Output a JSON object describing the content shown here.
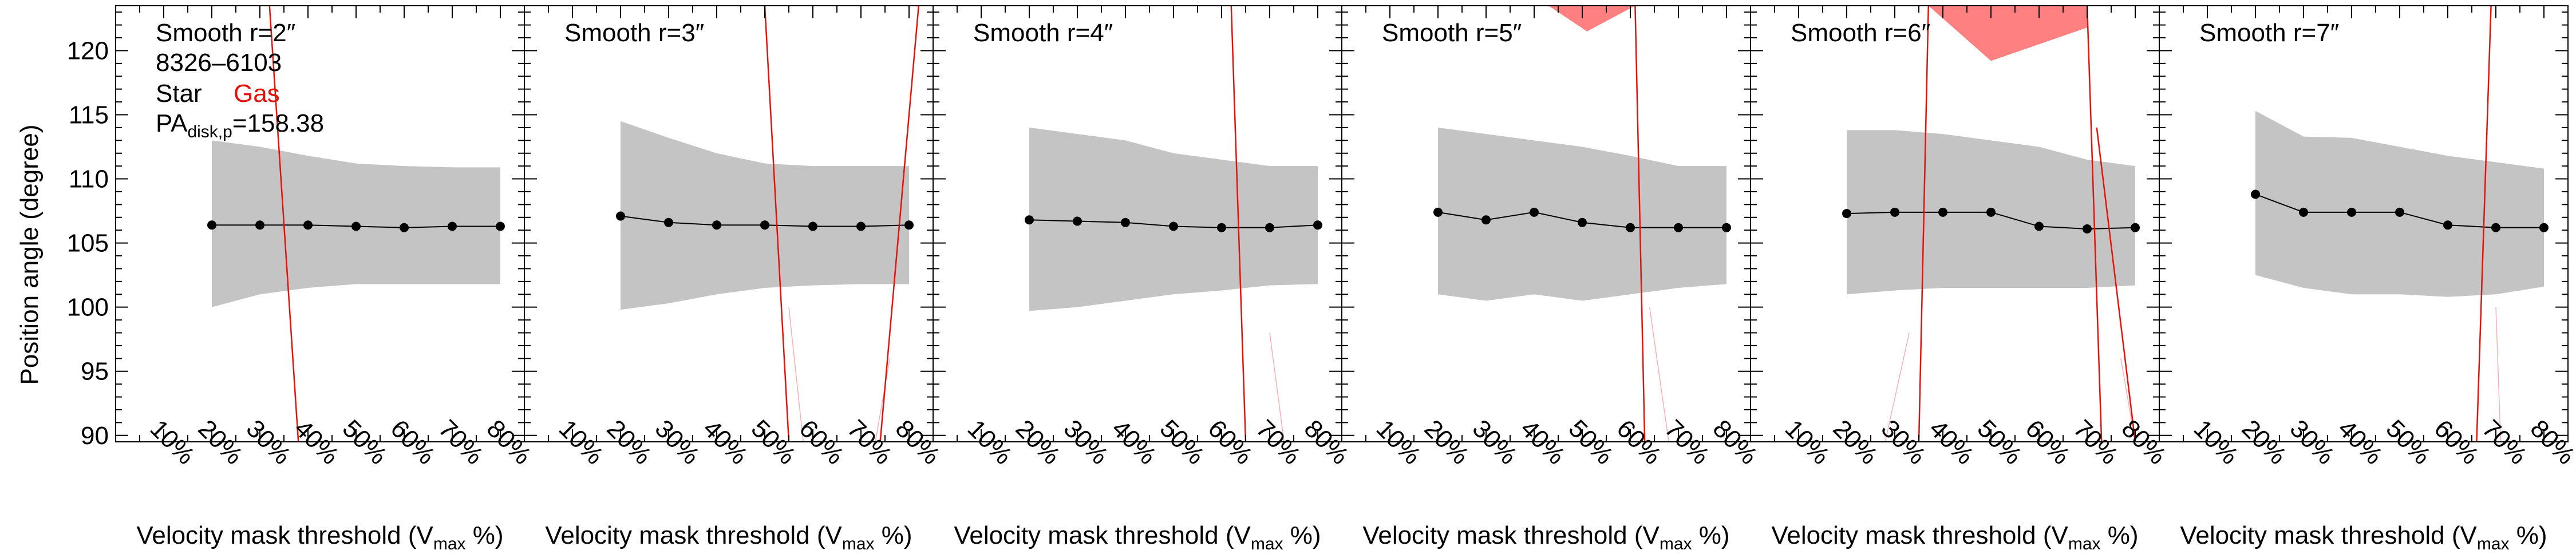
{
  "figure": {
    "ylabel": "Position angle (degree)",
    "xlabel_main": "Velocity mask threshold (V",
    "xlabel_sub": "max",
    "xlabel_tail": " %)",
    "ytick_labels": [
      "90",
      "95",
      "100",
      "105",
      "110",
      "115",
      "120"
    ],
    "xtick_labels": [
      "10%",
      "20%",
      "30%",
      "40%",
      "50%",
      "60%",
      "70%",
      "80%"
    ],
    "legend": {
      "plateifu": "8326–6103",
      "star": "Star",
      "gas": "Gas",
      "pa_main": "PA",
      "pa_sub": "disk,p",
      "pa_value": "=158.38"
    }
  },
  "chart_data": [
    {
      "type": "line",
      "title": "Smooth r=2″",
      "x": [
        20,
        30,
        40,
        50,
        60,
        70,
        80
      ],
      "y": [
        106.4,
        106.4,
        106.4,
        106.3,
        106.2,
        106.3,
        106.3
      ],
      "band_upper": [
        113.0,
        112.5,
        111.8,
        111.2,
        111.0,
        110.9,
        110.9
      ],
      "band_lower": [
        100.0,
        101.0,
        101.5,
        101.8,
        101.8,
        101.8,
        101.8
      ],
      "gas_lines": [
        [
          [
            32,
            123.5
          ],
          [
            38,
            89.5
          ]
        ]
      ],
      "gas_faint_lines": [],
      "gas_patches": [],
      "xlim": [
        0,
        85
      ],
      "ylim": [
        89.5,
        123.5
      ]
    },
    {
      "type": "line",
      "title": "Smooth r=3″",
      "x": [
        20,
        30,
        40,
        50,
        60,
        70,
        80
      ],
      "y": [
        107.1,
        106.6,
        106.4,
        106.4,
        106.3,
        106.3,
        106.4
      ],
      "band_upper": [
        114.5,
        113.2,
        112.0,
        111.2,
        111.0,
        111.0,
        111.0
      ],
      "band_lower": [
        99.8,
        100.3,
        101.0,
        101.5,
        101.7,
        101.8,
        101.8
      ],
      "gas_lines": [
        [
          [
            50,
            123.5
          ],
          [
            55,
            89.5
          ]
        ],
        [
          [
            82,
            123.5
          ],
          [
            74,
            89.5
          ]
        ]
      ],
      "gas_faint_lines": [
        [
          [
            55,
            100
          ],
          [
            58,
            89.5
          ]
        ],
        [
          [
            76,
            96
          ],
          [
            73,
            89.5
          ]
        ]
      ],
      "gas_patches": [],
      "xlim": [
        0,
        85
      ],
      "ylim": [
        89.5,
        123.5
      ]
    },
    {
      "type": "line",
      "title": "Smooth r=4″",
      "x": [
        20,
        30,
        40,
        50,
        60,
        70,
        80
      ],
      "y": [
        106.8,
        106.7,
        106.6,
        106.3,
        106.2,
        106.2,
        106.4
      ],
      "band_upper": [
        114.0,
        113.5,
        113.0,
        112.0,
        111.5,
        111.0,
        111.0
      ],
      "band_lower": [
        99.7,
        100.0,
        100.5,
        101.0,
        101.3,
        101.7,
        101.8
      ],
      "gas_lines": [
        [
          [
            62,
            123.5
          ],
          [
            65,
            89.5
          ]
        ]
      ],
      "gas_faint_lines": [
        [
          [
            70,
            98
          ],
          [
            73,
            89.5
          ]
        ]
      ],
      "gas_patches": [],
      "xlim": [
        0,
        85
      ],
      "ylim": [
        89.5,
        123.5
      ]
    },
    {
      "type": "line",
      "title": "Smooth r=5″",
      "x": [
        20,
        30,
        40,
        50,
        60,
        70,
        80
      ],
      "y": [
        107.4,
        106.8,
        107.4,
        106.6,
        106.2,
        106.2,
        106.2
      ],
      "band_upper": [
        114.0,
        113.5,
        113.0,
        112.5,
        111.8,
        111.0,
        111.0
      ],
      "band_lower": [
        101.0,
        100.5,
        101.0,
        100.5,
        101.0,
        101.5,
        101.8
      ],
      "gas_lines": [
        [
          [
            61,
            123.5
          ],
          [
            63,
            89.5
          ]
        ]
      ],
      "gas_faint_lines": [
        [
          [
            64,
            100
          ],
          [
            68,
            89.5
          ]
        ]
      ],
      "gas_patches": [
        [
          [
            43,
            123.5
          ],
          [
            51,
            121.5
          ],
          [
            61,
            123.5
          ]
        ]
      ],
      "xlim": [
        0,
        85
      ],
      "ylim": [
        89.5,
        123.5
      ]
    },
    {
      "type": "line",
      "title": "Smooth r=6″",
      "x": [
        20,
        30,
        40,
        50,
        60,
        70,
        80
      ],
      "y": [
        107.3,
        107.4,
        107.4,
        107.4,
        106.3,
        106.1,
        106.2
      ],
      "band_upper": [
        113.8,
        113.8,
        113.5,
        113.0,
        112.5,
        111.5,
        111.0
      ],
      "band_lower": [
        101.0,
        101.3,
        101.5,
        101.5,
        101.5,
        101.5,
        101.7
      ],
      "gas_lines": [
        [
          [
            37,
            123.5
          ],
          [
            35,
            89.5
          ]
        ],
        [
          [
            70,
            123.5
          ],
          [
            73,
            89.5
          ]
        ],
        [
          [
            72,
            114
          ],
          [
            80,
            89.5
          ]
        ]
      ],
      "gas_faint_lines": [
        [
          [
            33,
            98
          ],
          [
            28,
            89.5
          ]
        ],
        [
          [
            77,
            96
          ],
          [
            80,
            89.5
          ]
        ]
      ],
      "gas_patches": [
        [
          [
            37,
            123.5
          ],
          [
            50,
            119.2
          ],
          [
            70,
            121.8
          ],
          [
            70,
            123.5
          ]
        ]
      ],
      "xlim": [
        0,
        85
      ],
      "ylim": [
        89.5,
        123.5
      ]
    },
    {
      "type": "line",
      "title": "Smooth r=7″",
      "x": [
        20,
        30,
        40,
        50,
        60,
        70,
        80
      ],
      "y": [
        108.8,
        107.4,
        107.4,
        107.4,
        106.4,
        106.2,
        106.2
      ],
      "band_upper": [
        115.3,
        113.3,
        113.2,
        112.5,
        111.8,
        111.3,
        110.8
      ],
      "band_lower": [
        102.5,
        101.5,
        101.0,
        101.0,
        100.8,
        101.0,
        101.6
      ],
      "gas_lines": [
        [
          [
            69,
            123.5
          ],
          [
            66,
            89.5
          ]
        ]
      ],
      "gas_faint_lines": [
        [
          [
            70,
            100
          ],
          [
            71,
            89.5
          ]
        ]
      ],
      "gas_patches": [],
      "xlim": [
        0,
        85
      ],
      "ylim": [
        89.5,
        123.5
      ]
    }
  ],
  "colors": {
    "band": "#c4c4c4",
    "line": "#000000",
    "gas": "#e3120b",
    "gas_fill": "#ff8080",
    "gas_faint": "#f2b0b0"
  }
}
